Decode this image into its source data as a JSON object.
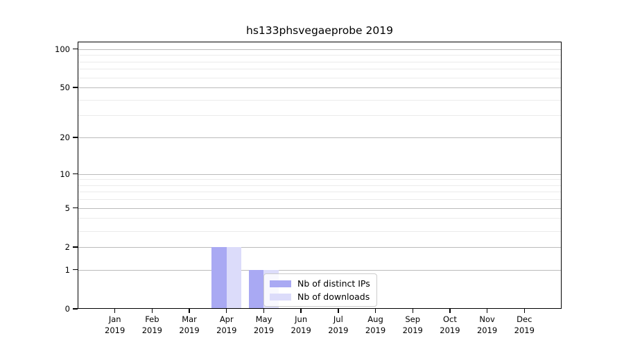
{
  "chart_data": {
    "type": "bar",
    "title": "hs133phsvegaeprobe 2019",
    "categories": [
      "Jan",
      "Feb",
      "Mar",
      "Apr",
      "May",
      "Jun",
      "Jul",
      "Aug",
      "Sep",
      "Oct",
      "Nov",
      "Dec"
    ],
    "category_year": "2019",
    "series": [
      {
        "name": "Nb of distinct IPs",
        "color": "#a9a9f3",
        "values": [
          0,
          0,
          0,
          2,
          1,
          0,
          0,
          0,
          0,
          0,
          0,
          0
        ]
      },
      {
        "name": "Nb of downloads",
        "color": "#dcdcfa",
        "values": [
          0,
          0,
          0,
          2,
          1,
          0,
          0,
          0,
          0,
          0,
          0,
          0
        ]
      }
    ],
    "yscale": "log1p",
    "y_major_ticks": [
      0,
      1,
      2,
      5,
      10,
      20,
      50,
      100
    ],
    "y_major_tick_labels": [
      "0",
      "1",
      "2",
      "5",
      "10",
      "20",
      "50",
      "100"
    ],
    "y_minor_ticks": [
      3,
      4,
      6,
      7,
      8,
      9,
      30,
      40,
      60,
      70,
      80,
      90
    ],
    "ylim": [
      0,
      114
    ],
    "xlabel": "",
    "ylabel": "",
    "grid": "both",
    "legend_position": "lower center-right inside plot"
  },
  "colors": {
    "major_grid": "#bbbbbb",
    "minor_grid": "#ebebeb",
    "axis": "#000000",
    "legend_border": "#cccccc"
  }
}
